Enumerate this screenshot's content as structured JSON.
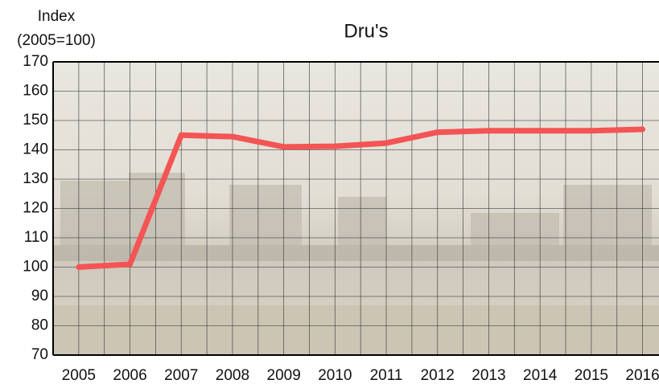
{
  "chart_data": {
    "type": "line",
    "title": "Dru's",
    "y_label": [
      "Index",
      "(2005=100)"
    ],
    "categories": [
      "2005",
      "2006",
      "2007",
      "2008",
      "2009",
      "2010",
      "2011",
      "2012",
      "2013",
      "2014",
      "2015",
      "2016"
    ],
    "series": [
      {
        "name": "Dru's",
        "color": "#f45454",
        "values": [
          100,
          101,
          145,
          144.5,
          141,
          141.2,
          142.3,
          146,
          146.5,
          146.5,
          146.5,
          147
        ]
      }
    ],
    "ylim": [
      70,
      170
    ],
    "yticks": [
      70,
      80,
      90,
      100,
      110,
      120,
      130,
      140,
      150,
      160,
      170
    ],
    "grid": true
  }
}
